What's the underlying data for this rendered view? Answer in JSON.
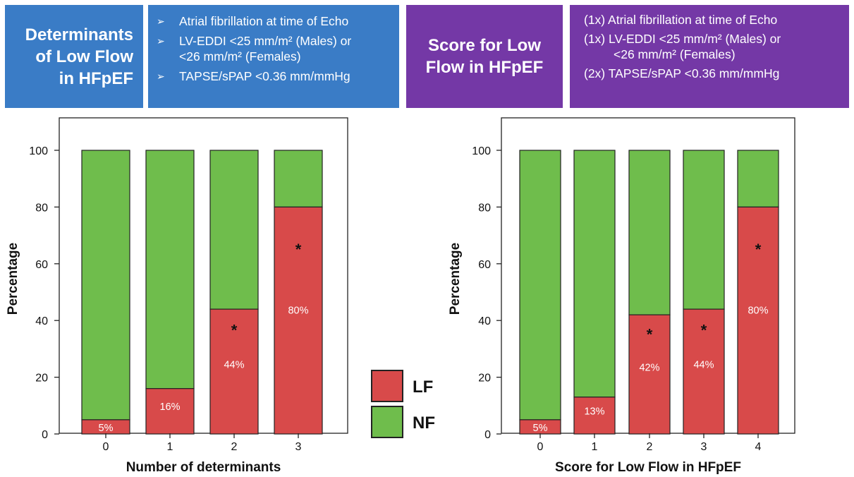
{
  "panels": [
    {
      "title": "Determinants of Low Flow in HFpEF",
      "title_lines": [
        "Determinants",
        "of Low Flow",
        "in HFpEF"
      ],
      "bullet_symbol": "➢",
      "criteria": [
        {
          "line1": "Atrial fibrillation at time of Echo",
          "line2": ""
        },
        {
          "line1": "LV-EDDI <25 mm/m² (Males) or",
          "line2": "<26 mm/m² (Females)"
        },
        {
          "line1": "TAPSE/sPAP <0.36 mm/mmHg",
          "line2": ""
        }
      ]
    },
    {
      "title": "Score for Low Flow in HFpEF",
      "title_lines": [
        "Score for Low",
        "Flow in HFpEF"
      ],
      "criteria": [
        {
          "line1": "(1x) Atrial fibrillation at time of Echo",
          "line2": ""
        },
        {
          "line1": "(1x) LV-EDDI <25 mm/m² (Males) or",
          "line2": "<26 mm/m² (Females)"
        },
        {
          "line1": "(2x) TAPSE/sPAP <0.36 mm/mmHg",
          "line2": ""
        }
      ]
    }
  ],
  "legend": [
    {
      "label": "LF",
      "color": "#d84a4a"
    },
    {
      "label": "NF",
      "color": "#6fbd4c"
    }
  ],
  "colors": {
    "lf": "#d84a4a",
    "nf": "#6fbd4c",
    "blue_box": "#3a7cc6",
    "purple_box": "#7438a6"
  },
  "chart_data": [
    {
      "type": "bar",
      "stacked": true,
      "xlabel": "Number of determinants",
      "ylabel": "Percentage",
      "ylim": [
        0,
        100
      ],
      "yticks": [
        0,
        20,
        40,
        60,
        80,
        100
      ],
      "categories": [
        "0",
        "1",
        "2",
        "3"
      ],
      "series": [
        {
          "name": "LF",
          "values": [
            5,
            16,
            44,
            80
          ]
        },
        {
          "name": "NF",
          "values": [
            95,
            84,
            56,
            20
          ]
        }
      ],
      "data_labels": [
        "5%",
        "16%",
        "44%",
        "80%"
      ],
      "significance": [
        "",
        "",
        "*",
        "*"
      ]
    },
    {
      "type": "bar",
      "stacked": true,
      "xlabel": "Score for Low Flow in HFpEF",
      "ylabel": "Percentage",
      "ylim": [
        0,
        100
      ],
      "yticks": [
        0,
        20,
        40,
        60,
        80,
        100
      ],
      "categories": [
        "0",
        "1",
        "2",
        "3",
        "4"
      ],
      "series": [
        {
          "name": "LF",
          "values": [
            5,
            13,
            42,
            44,
            80
          ]
        },
        {
          "name": "NF",
          "values": [
            95,
            87,
            58,
            56,
            20
          ]
        }
      ],
      "data_labels": [
        "5%",
        "13%",
        "42%",
        "44%",
        "80%"
      ],
      "significance": [
        "",
        "",
        "*",
        "*",
        "*"
      ]
    }
  ]
}
